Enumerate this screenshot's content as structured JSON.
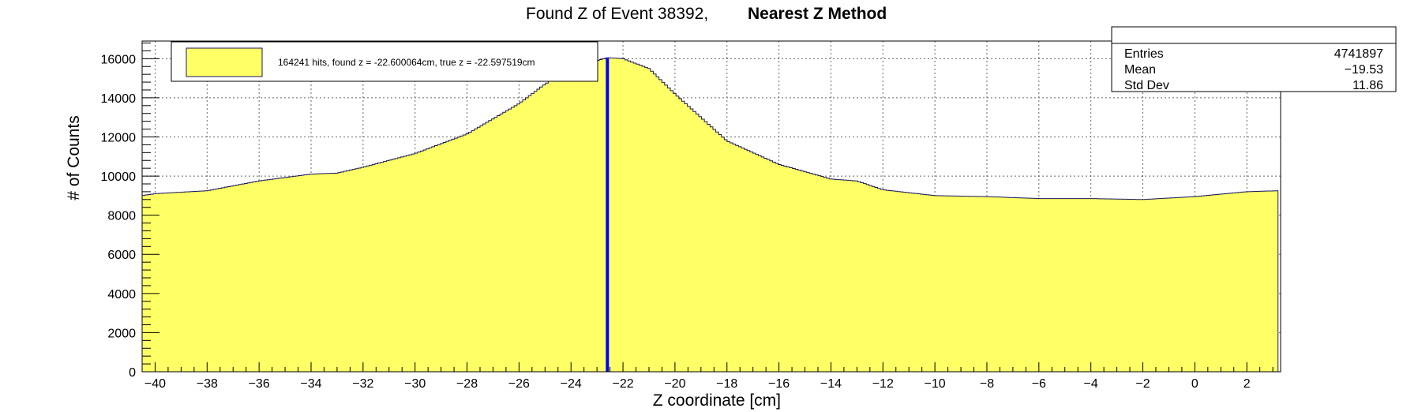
{
  "chart_data": {
    "type": "histogram",
    "title_part1": "Found Z of Event 38392,",
    "title_part2": "Nearest Z Method",
    "xlabel": "Z coordinate [cm]",
    "ylabel": "# of Counts",
    "xlim": [
      -40.5,
      3.3
    ],
    "ylim": [
      0,
      16900
    ],
    "grid": true,
    "x_ticks": [
      -40,
      -38,
      -36,
      -34,
      -32,
      -30,
      -28,
      -26,
      -24,
      -22,
      -20,
      -18,
      -16,
      -14,
      -12,
      -10,
      -8,
      -6,
      -4,
      -2,
      0,
      2
    ],
    "y_ticks": [
      0,
      2000,
      4000,
      6000,
      8000,
      10000,
      12000,
      14000,
      16000
    ],
    "histogram_profile": {
      "x": [
        -40.5,
        -40,
        -38,
        -36,
        -34,
        -33,
        -32,
        -30,
        -28,
        -26,
        -25,
        -24,
        -23,
        -22.6,
        -22,
        -21,
        -20,
        -18,
        -16,
        -14,
        -13,
        -12,
        -10,
        -8,
        -6,
        -4,
        -2,
        0,
        2,
        3.2
      ],
      "y": [
        9000,
        9100,
        9250,
        9750,
        10100,
        10150,
        10450,
        11150,
        12150,
        13700,
        14700,
        15500,
        15900,
        16050,
        16000,
        15500,
        14200,
        11800,
        10600,
        9850,
        9750,
        9300,
        9000,
        8950,
        8850,
        8850,
        8800,
        8950,
        9200,
        9250
      ]
    },
    "fill_color": "#ffff66",
    "line_color": "#1a1a5e",
    "marker": {
      "x": -22.6,
      "color": "#0000ff"
    },
    "legend": {
      "label": "164241 hits, found z = -22.600064cm, true z = -22.597519cm",
      "placement": "top-left"
    },
    "stats": {
      "placement": "top-right",
      "rows": [
        {
          "label": "Entries",
          "value": "4741897"
        },
        {
          "label": "Mean",
          "value": "−19.53"
        },
        {
          "label": "Std Dev",
          "value": "11.86"
        }
      ]
    }
  }
}
